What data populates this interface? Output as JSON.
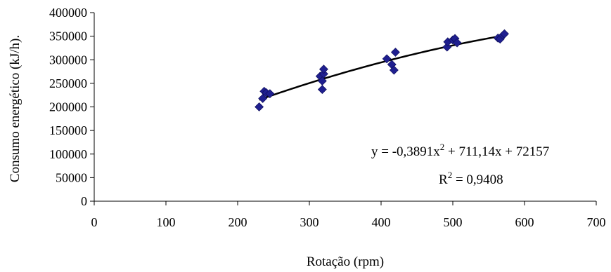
{
  "chart_data": {
    "type": "scatter",
    "xlabel": "Rotação (rpm)",
    "ylabel": "Consumo energético (kJ/h).",
    "xlim": [
      0,
      700
    ],
    "ylim": [
      0,
      400000
    ],
    "x_ticks": [
      0,
      100,
      200,
      300,
      400,
      500,
      600,
      700
    ],
    "y_ticks": [
      0,
      50000,
      100000,
      150000,
      200000,
      250000,
      300000,
      350000,
      400000
    ],
    "x_tick_labels": [
      "0",
      "100",
      "200",
      "300",
      "400",
      "500",
      "600",
      "700"
    ],
    "y_tick_labels": [
      "0",
      "50000",
      "100000",
      "150000",
      "200000",
      "250000",
      "300000",
      "350000",
      "400000"
    ],
    "grid": false,
    "marker_color": "#1f1f8f",
    "trendline_color": "#000000",
    "series": [
      {
        "points": [
          {
            "x": 230,
            "y": 200000
          },
          {
            "x": 235,
            "y": 218000
          },
          {
            "x": 237,
            "y": 233000
          },
          {
            "x": 240,
            "y": 230000
          },
          {
            "x": 245,
            "y": 228000
          },
          {
            "x": 315,
            "y": 265000
          },
          {
            "x": 318,
            "y": 237000
          },
          {
            "x": 318,
            "y": 255000
          },
          {
            "x": 320,
            "y": 270000
          },
          {
            "x": 320,
            "y": 280000
          },
          {
            "x": 408,
            "y": 302000
          },
          {
            "x": 415,
            "y": 290000
          },
          {
            "x": 418,
            "y": 278000
          },
          {
            "x": 420,
            "y": 316000
          },
          {
            "x": 492,
            "y": 327000
          },
          {
            "x": 493,
            "y": 338000
          },
          {
            "x": 500,
            "y": 342000
          },
          {
            "x": 503,
            "y": 345000
          },
          {
            "x": 506,
            "y": 336000
          },
          {
            "x": 563,
            "y": 346000
          },
          {
            "x": 566,
            "y": 344000
          },
          {
            "x": 570,
            "y": 352000
          },
          {
            "x": 572,
            "y": 355000
          }
        ]
      }
    ],
    "trendline": {
      "type": "polynomial",
      "coefficients": {
        "a": -0.3891,
        "b": 711.14,
        "c": 72157
      },
      "x_range": [
        230,
        572
      ]
    },
    "annotations": {
      "equation_lhs": "y = -0,3891x",
      "equation_sup": "2",
      "equation_rhs": " + 711,14x + 72157",
      "r2_lhs": "R",
      "r2_sup": "2",
      "r2_rhs": " = 0,9408"
    }
  }
}
